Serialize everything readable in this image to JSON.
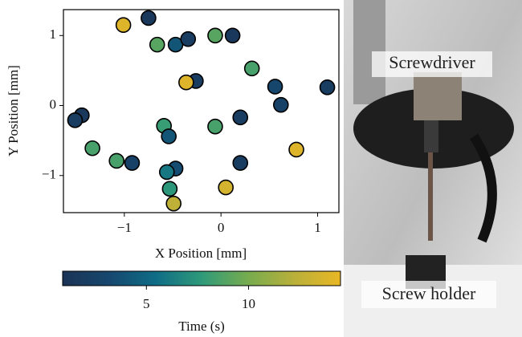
{
  "chart_data": {
    "type": "scatter",
    "xlabel": "X Position [mm]",
    "ylabel": "Y Position [mm]",
    "xlim": [
      -1.63,
      1.22
    ],
    "ylim": [
      -1.53,
      1.37
    ],
    "xticks": [
      {
        "value": -1,
        "label": "−1"
      },
      0,
      1
    ],
    "yticks": [
      {
        "value": -1,
        "label": "−1"
      },
      0,
      1
    ],
    "series": [
      {
        "x": [
          -0.75,
          -1.01,
          -0.66,
          -0.47,
          -0.34,
          -0.06,
          0.12,
          0.32,
          -0.26,
          -0.36,
          0.56,
          1.1,
          0.62,
          -1.44,
          -1.51,
          -0.59,
          -0.54,
          -0.06,
          0.2,
          -1.33,
          0.78,
          -1.08,
          -0.92,
          -0.47,
          -0.56,
          0.2,
          -0.53,
          0.05,
          -0.49
        ],
        "y": [
          1.25,
          1.15,
          0.87,
          0.87,
          0.95,
          1.0,
          1.0,
          0.53,
          0.35,
          0.33,
          0.27,
          0.26,
          0.01,
          -0.14,
          -0.21,
          -0.29,
          -0.44,
          -0.3,
          -0.17,
          -0.61,
          -0.63,
          -0.79,
          -0.82,
          -0.9,
          -0.95,
          -0.82,
          -1.19,
          -1.17,
          -1.4
        ],
        "c": [
          1.5,
          14,
          9,
          4,
          2,
          9,
          1.5,
          8.5,
          2,
          14,
          3,
          2,
          2.5,
          1.5,
          2,
          8,
          4,
          8.5,
          2,
          8.5,
          14,
          8.5,
          2.5,
          3.5,
          6,
          2,
          7.5,
          13.5,
          12.5
        ]
      }
    ],
    "colorbar": {
      "label": "Time (s)",
      "lim": [
        0.9,
        14.5
      ],
      "ticks": [
        5,
        10
      ],
      "colors": [
        "#1b3354",
        "#16476e",
        "#0f6c86",
        "#2f9a7a",
        "#76ac4f",
        "#b9b03a",
        "#e9b725"
      ]
    }
  },
  "photo": {
    "labels": [
      "Screwdriver",
      "Screw holder"
    ]
  }
}
